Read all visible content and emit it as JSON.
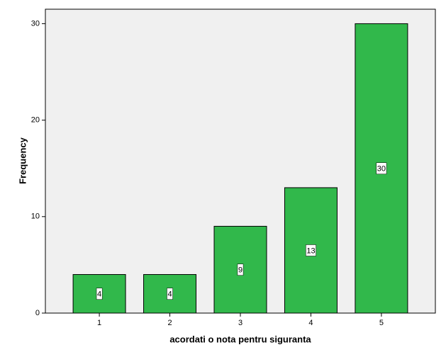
{
  "chart_data": {
    "type": "bar",
    "x_label": "acordati o nota pentru siguranta",
    "y_label": "Frequency",
    "categories": [
      "1",
      "2",
      "3",
      "4",
      "5"
    ],
    "values": [
      4,
      4,
      9,
      13,
      30
    ],
    "color": "#31b84b",
    "ylim": [
      0,
      31.5
    ],
    "yticks": [
      0,
      10,
      20,
      30
    ],
    "grid": false
  }
}
